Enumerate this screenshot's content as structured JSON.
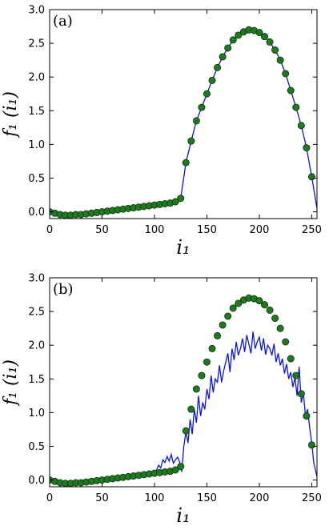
{
  "chart_data": [
    {
      "type": "scatter",
      "panel_label": "(a)",
      "xlabel": "i₁",
      "ylabel": "f₁ (i₁)",
      "xlim": [
        0,
        255
      ],
      "ylim": [
        -0.1,
        3.0
      ],
      "xticks": [
        "0",
        "50",
        "100",
        "150",
        "200",
        "250"
      ],
      "yticks": [
        "0.0",
        "0.5",
        "1.0",
        "1.5",
        "2.0",
        "2.5",
        "3.0"
      ],
      "grid": false,
      "colors": {
        "markers": "#1f7a1f",
        "marker_edge": "#0b2e0b",
        "line": "#0a14e6"
      },
      "series": [
        {
          "kind": "markers",
          "x": [
            0,
            5,
            10,
            15,
            20,
            25,
            30,
            35,
            40,
            45,
            50,
            55,
            60,
            65,
            70,
            75,
            80,
            85,
            90,
            95,
            100,
            105,
            110,
            115,
            120,
            125,
            130,
            135,
            140,
            145,
            150,
            155,
            160,
            165,
            170,
            175,
            180,
            185,
            190,
            195,
            200,
            205,
            210,
            215,
            220,
            225,
            230,
            235,
            240,
            245,
            250
          ],
          "y": [
            0.0,
            -0.02,
            -0.04,
            -0.05,
            -0.05,
            -0.04,
            -0.04,
            -0.03,
            -0.02,
            -0.01,
            0.0,
            0.01,
            0.02,
            0.03,
            0.04,
            0.05,
            0.06,
            0.07,
            0.08,
            0.09,
            0.1,
            0.11,
            0.12,
            0.13,
            0.15,
            0.2,
            0.73,
            1.05,
            1.35,
            1.55,
            1.75,
            1.95,
            2.14,
            2.3,
            2.43,
            2.55,
            2.62,
            2.67,
            2.7,
            2.69,
            2.66,
            2.6,
            2.52,
            2.4,
            2.25,
            2.05,
            1.8,
            1.55,
            1.28,
            0.95,
            0.52
          ]
        },
        {
          "kind": "line",
          "x": [
            0,
            5,
            10,
            15,
            20,
            25,
            30,
            35,
            40,
            45,
            50,
            55,
            60,
            65,
            70,
            75,
            80,
            85,
            90,
            95,
            100,
            105,
            110,
            115,
            120,
            125,
            130,
            135,
            140,
            145,
            150,
            155,
            160,
            165,
            170,
            175,
            180,
            185,
            190,
            195,
            200,
            205,
            210,
            215,
            220,
            225,
            230,
            235,
            240,
            245,
            250,
            255
          ],
          "y": [
            0.0,
            -0.02,
            -0.04,
            -0.05,
            -0.05,
            -0.04,
            -0.04,
            -0.03,
            -0.02,
            -0.01,
            0.0,
            0.01,
            0.02,
            0.03,
            0.04,
            0.05,
            0.06,
            0.07,
            0.08,
            0.09,
            0.1,
            0.11,
            0.12,
            0.13,
            0.15,
            0.2,
            0.73,
            1.05,
            1.35,
            1.55,
            1.75,
            1.95,
            2.14,
            2.3,
            2.43,
            2.55,
            2.62,
            2.67,
            2.7,
            2.69,
            2.66,
            2.6,
            2.52,
            2.4,
            2.25,
            2.05,
            1.8,
            1.55,
            1.28,
            0.95,
            0.52,
            0.05
          ]
        }
      ]
    },
    {
      "type": "scatter",
      "panel_label": "(b)",
      "xlabel": "i₁",
      "ylabel": "f₁ (i₁)",
      "xlim": [
        0,
        255
      ],
      "ylim": [
        -0.1,
        3.0
      ],
      "xticks": [
        "0",
        "50",
        "100",
        "150",
        "200",
        "250"
      ],
      "yticks": [
        "0.0",
        "0.5",
        "1.0",
        "1.5",
        "2.0",
        "2.5",
        "3.0"
      ],
      "grid": false,
      "colors": {
        "markers": "#1f7a1f",
        "marker_edge": "#0b2e0b",
        "line": "#0a14e6"
      },
      "series": [
        {
          "kind": "markers",
          "x": [
            0,
            5,
            10,
            15,
            20,
            25,
            30,
            35,
            40,
            45,
            50,
            55,
            60,
            65,
            70,
            75,
            80,
            85,
            90,
            95,
            100,
            105,
            110,
            115,
            120,
            125,
            130,
            135,
            140,
            145,
            150,
            155,
            160,
            165,
            170,
            175,
            180,
            185,
            190,
            195,
            200,
            205,
            210,
            215,
            220,
            225,
            230,
            235,
            240,
            245,
            250
          ],
          "y": [
            0.0,
            -0.02,
            -0.04,
            -0.05,
            -0.05,
            -0.04,
            -0.04,
            -0.03,
            -0.02,
            -0.01,
            0.0,
            0.01,
            0.02,
            0.03,
            0.04,
            0.05,
            0.06,
            0.07,
            0.08,
            0.09,
            0.1,
            0.11,
            0.12,
            0.13,
            0.15,
            0.2,
            0.73,
            1.05,
            1.35,
            1.55,
            1.75,
            1.95,
            2.14,
            2.3,
            2.43,
            2.55,
            2.62,
            2.67,
            2.7,
            2.69,
            2.66,
            2.6,
            2.52,
            2.4,
            2.25,
            2.05,
            1.8,
            1.55,
            1.28,
            0.95,
            0.52
          ]
        },
        {
          "kind": "line",
          "x": [
            0,
            5,
            10,
            15,
            20,
            25,
            30,
            35,
            40,
            45,
            50,
            55,
            60,
            65,
            70,
            75,
            80,
            85,
            90,
            95,
            100,
            102,
            104,
            106,
            108,
            110,
            112,
            114,
            116,
            118,
            120,
            122,
            124,
            126,
            128,
            130,
            132,
            134,
            136,
            138,
            140,
            142,
            144,
            146,
            148,
            150,
            152,
            154,
            156,
            158,
            160,
            162,
            164,
            166,
            168,
            170,
            172,
            174,
            176,
            178,
            180,
            182,
            184,
            186,
            188,
            190,
            192,
            194,
            196,
            198,
            200,
            202,
            204,
            206,
            208,
            210,
            212,
            214,
            216,
            218,
            220,
            222,
            224,
            226,
            228,
            230,
            232,
            234,
            236,
            238,
            240,
            242,
            244,
            246,
            248,
            250,
            252,
            255
          ],
          "y": [
            0.0,
            -0.02,
            -0.04,
            -0.05,
            -0.05,
            -0.04,
            -0.04,
            -0.03,
            -0.02,
            -0.01,
            0.0,
            0.01,
            0.02,
            0.03,
            0.04,
            0.05,
            0.06,
            0.07,
            0.08,
            0.1,
            0.12,
            0.15,
            0.22,
            0.18,
            0.3,
            0.26,
            0.35,
            0.28,
            0.38,
            0.25,
            0.3,
            0.34,
            0.27,
            0.12,
            0.5,
            0.72,
            0.55,
            0.9,
            0.68,
            1.05,
            0.85,
            1.25,
            0.95,
            1.15,
            1.05,
            1.35,
            1.2,
            1.55,
            1.3,
            1.5,
            1.45,
            1.7,
            1.45,
            1.62,
            1.75,
            1.88,
            1.6,
            1.95,
            1.78,
            2.05,
            1.85,
            1.95,
            2.1,
            1.9,
            2.15,
            2.02,
            1.88,
            2.2,
            1.95,
            2.05,
            2.12,
            1.92,
            2.1,
            1.86,
            2.0,
            1.95,
            1.85,
            2.02,
            1.75,
            1.88,
            1.7,
            1.8,
            1.58,
            1.72,
            1.5,
            1.6,
            1.38,
            1.52,
            1.25,
            1.68,
            1.15,
            1.3,
            0.95,
            1.05,
            0.78,
            0.55,
            0.25,
            0.05
          ]
        }
      ]
    }
  ]
}
